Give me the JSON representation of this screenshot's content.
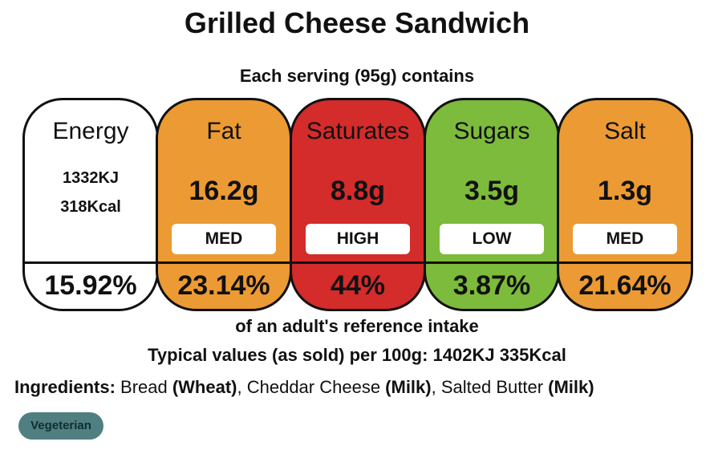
{
  "title": "Grilled Cheese Sandwich",
  "serving_text": "Each serving (95g) contains",
  "colors": {
    "white": "#ffffff",
    "med": "#ec9a33",
    "high": "#d42b2b",
    "low": "#7cbb3b"
  },
  "nutrients": [
    {
      "name": "Energy",
      "kj": "1332KJ",
      "kcal": "318Kcal",
      "percent": "15.92%",
      "color": "#ffffff"
    },
    {
      "name": "Fat",
      "value": "16.2g",
      "level": "MED",
      "percent": "23.14%",
      "color": "#ec9a33"
    },
    {
      "name": "Saturates",
      "value": "8.8g",
      "level": "HIGH",
      "percent": "44%",
      "color": "#d42b2b"
    },
    {
      "name": "Sugars",
      "value": "3.5g",
      "level": "LOW",
      "percent": "3.87%",
      "color": "#7cbb3b"
    },
    {
      "name": "Salt",
      "value": "1.3g",
      "level": "MED",
      "percent": "21.64%",
      "color": "#ec9a33"
    }
  ],
  "reference_text": "of an adult's reference intake",
  "typical_values": "Typical values (as sold) per 100g: 1402KJ 335Kcal",
  "ingredients": {
    "label": "Ingredients:",
    "parts": [
      {
        "text": " Bread ",
        "bold": false
      },
      {
        "text": "(Wheat)",
        "bold": true
      },
      {
        "text": ", Cheddar Cheese ",
        "bold": false
      },
      {
        "text": "(Milk)",
        "bold": true
      },
      {
        "text": ", Salted Butter ",
        "bold": false
      },
      {
        "text": "(Milk)",
        "bold": true
      }
    ]
  },
  "tag": "Vegeterian"
}
